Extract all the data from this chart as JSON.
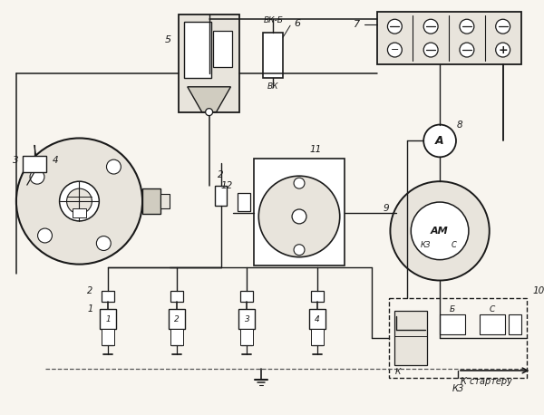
{
  "bg_color": "#f8f5ef",
  "line_color": "#1a1a1a",
  "fill_light": "#e8e4dc",
  "fill_mid": "#d0ccc0",
  "labels": {
    "vk_b": "ВК-Б",
    "vk": "ВК",
    "k_starter": "К стартеру",
    "num1": "1",
    "num2": "2",
    "num3": "3",
    "num4": "4",
    "num5": "5",
    "num6": "6",
    "num7": "7",
    "num8": "8",
    "num9": "9",
    "num10": "10",
    "num11": "11",
    "num12": "12",
    "am": "АМ",
    "kz": "КЗ",
    "c_gen": "С",
    "a_label": "А",
    "k_rel": "К",
    "b_rel": "Б",
    "c_rel": "С"
  }
}
